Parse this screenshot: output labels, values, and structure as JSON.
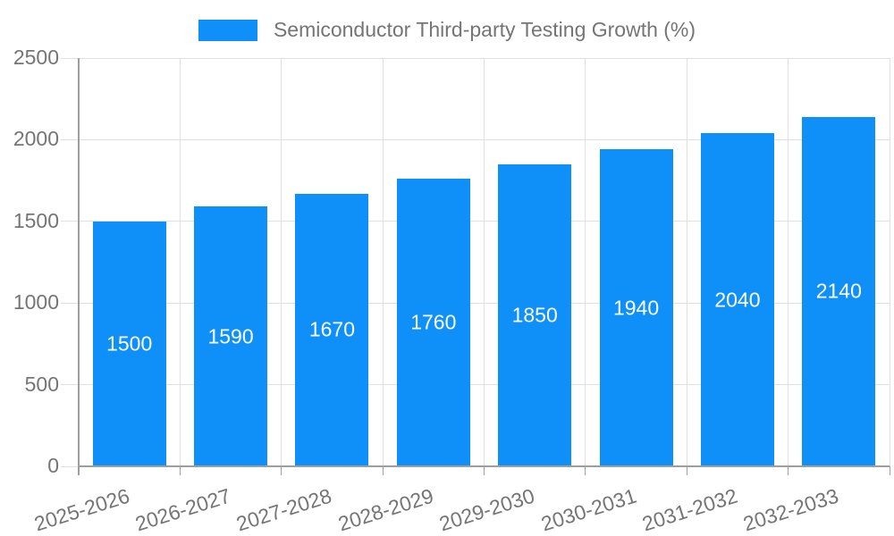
{
  "chart_data": {
    "type": "bar",
    "title": "Semiconductor Third-party Testing Growth (%)",
    "series_name": "Semiconductor Third-party Testing Growth (%)",
    "categories": [
      "2025-2026",
      "2026-2027",
      "2027-2028",
      "2028-2029",
      "2029-2030",
      "2030-2031",
      "2031-2032",
      "2032-2033"
    ],
    "values": [
      1500,
      1590,
      1670,
      1760,
      1850,
      1940,
      2040,
      2140
    ],
    "value_labels": [
      "1500",
      "1590",
      "1670",
      "1760",
      "1850",
      "1940",
      "2040",
      "2140"
    ],
    "xlabel": "",
    "ylabel": "",
    "ylim": [
      0,
      2500
    ],
    "yticks": [
      0,
      500,
      1000,
      1500,
      2000,
      2500
    ],
    "ytick_labels": [
      "0",
      "500",
      "1000",
      "1500",
      "2000",
      "2500"
    ],
    "grid": "horizontal and vertical gridlines on",
    "legend_position": "top-center",
    "colors": {
      "bar": "#0e90f8",
      "value_label": "#ffffff",
      "axis_text": "#757575",
      "gridline": "#e0e0e0",
      "axis_line": "#9e9e9e"
    }
  }
}
